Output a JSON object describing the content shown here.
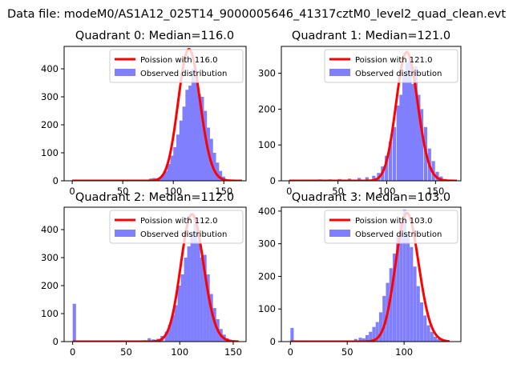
{
  "figure": {
    "suptitle": "Data file: modeM0/AS1A12_025T14_9000005646_41317cztM0_level2_quad_clean.evt",
    "colors": {
      "observed": "#8080ff",
      "poisson": "#ff0000",
      "axes": "#000000",
      "background": "#ffffff"
    }
  },
  "chart_data": [
    {
      "type": "bar+line",
      "title": "Quadrant 0: Median=116.0",
      "median": 116.0,
      "xlim": [
        -8,
        172
      ],
      "ylim": [
        0,
        480
      ],
      "xticks": [
        0,
        50,
        100,
        150
      ],
      "yticks": [
        0,
        100,
        200,
        300,
        400
      ],
      "legend": {
        "placement": "upper-right",
        "entries": [
          "Poission with 116.0",
          "Observed distribution"
        ]
      },
      "observed": {
        "name": "Observed distribution",
        "bin_width": 3.3,
        "bins": [
          [
            70,
            3
          ],
          [
            73,
            4
          ],
          [
            76,
            8
          ],
          [
            79,
            10
          ],
          [
            82,
            8
          ],
          [
            85,
            12
          ],
          [
            88,
            22
          ],
          [
            91,
            35
          ],
          [
            94,
            60
          ],
          [
            97,
            90
          ],
          [
            100,
            120
          ],
          [
            103,
            165
          ],
          [
            106,
            215
          ],
          [
            109,
            265
          ],
          [
            112,
            325
          ],
          [
            115,
            340
          ],
          [
            118,
            400
          ],
          [
            121,
            360
          ],
          [
            124,
            310
          ],
          [
            127,
            300
          ],
          [
            130,
            250
          ],
          [
            133,
            190
          ],
          [
            136,
            150
          ],
          [
            139,
            100
          ],
          [
            142,
            65
          ],
          [
            145,
            35
          ],
          [
            148,
            15
          ],
          [
            151,
            6
          ],
          [
            154,
            3
          ]
        ]
      },
      "poisson": {
        "name": "Poission with 116.0",
        "mu": 116.0,
        "amplitude": 470,
        "x_range": [
          0,
          168
        ]
      }
    },
    {
      "type": "bar+line",
      "title": "Quadrant 1: Median=121.0",
      "median": 121.0,
      "xlim": [
        -8,
        176
      ],
      "ylim": [
        0,
        375
      ],
      "xticks": [
        0,
        50,
        100,
        150
      ],
      "yticks": [
        0,
        100,
        200,
        300
      ],
      "legend": {
        "placement": "upper-right",
        "entries": [
          "Poission with 121.0",
          "Observed distribution"
        ]
      },
      "observed": {
        "name": "Observed distribution",
        "bin_width": 3.5,
        "bins": [
          [
            10,
            2
          ],
          [
            20,
            3
          ],
          [
            30,
            4
          ],
          [
            40,
            4
          ],
          [
            50,
            5
          ],
          [
            60,
            6
          ],
          [
            70,
            8
          ],
          [
            78,
            10
          ],
          [
            85,
            14
          ],
          [
            90,
            22
          ],
          [
            94,
            40
          ],
          [
            98,
            70
          ],
          [
            102,
            110
          ],
          [
            106,
            150
          ],
          [
            110,
            210
          ],
          [
            113,
            240
          ],
          [
            116,
            300
          ],
          [
            119,
            330
          ],
          [
            122,
            340
          ],
          [
            125,
            270
          ],
          [
            128,
            320
          ],
          [
            131,
            240
          ],
          [
            134,
            200
          ],
          [
            138,
            150
          ],
          [
            142,
            90
          ],
          [
            146,
            55
          ],
          [
            150,
            25
          ],
          [
            154,
            12
          ],
          [
            158,
            5
          ]
        ]
      },
      "poisson": {
        "name": "Poission with 121.0",
        "mu": 121.0,
        "amplitude": 359,
        "x_range": [
          0,
          172
        ]
      }
    },
    {
      "type": "bar+line",
      "title": "Quadrant 2: Median=112.0",
      "median": 112.0,
      "xlim": [
        -8,
        162
      ],
      "ylim": [
        0,
        480
      ],
      "xticks": [
        0,
        50,
        100,
        150
      ],
      "yticks": [
        0,
        100,
        200,
        300,
        400
      ],
      "legend": {
        "placement": "upper-right",
        "entries": [
          "Poission with 112.0",
          "Observed distribution"
        ]
      },
      "observed": {
        "name": "Observed distribution",
        "bin_width": 3.1,
        "bins": [
          [
            0,
            135
          ],
          [
            66,
            5
          ],
          [
            70,
            12
          ],
          [
            74,
            8
          ],
          [
            78,
            10
          ],
          [
            82,
            20
          ],
          [
            86,
            35
          ],
          [
            89,
            60
          ],
          [
            92,
            95
          ],
          [
            95,
            130
          ],
          [
            98,
            200
          ],
          [
            101,
            240
          ],
          [
            104,
            300
          ],
          [
            107,
            340
          ],
          [
            110,
            390
          ],
          [
            113,
            420
          ],
          [
            116,
            360
          ],
          [
            119,
            300
          ],
          [
            122,
            310
          ],
          [
            125,
            240
          ],
          [
            128,
            170
          ],
          [
            131,
            120
          ],
          [
            134,
            80
          ],
          [
            137,
            45
          ],
          [
            140,
            25
          ],
          [
            143,
            12
          ],
          [
            146,
            6
          ],
          [
            149,
            3
          ]
        ]
      },
      "poisson": {
        "name": "Poission with 112.0",
        "mu": 112.0,
        "amplitude": 455,
        "x_range": [
          0,
          155
        ]
      }
    },
    {
      "type": "bar+line",
      "title": "Quadrant 3: Median=103.0",
      "median": 103.0,
      "xlim": [
        -8,
        150
      ],
      "ylim": [
        0,
        412
      ],
      "xticks": [
        0,
        50,
        100
      ],
      "yticks": [
        0,
        100,
        200,
        300,
        400
      ],
      "legend": {
        "placement": "upper-right",
        "entries": [
          "Poission with 103.0",
          "Observed distribution"
        ]
      },
      "observed": {
        "name": "Observed distribution",
        "bin_width": 2.9,
        "bins": [
          [
            0,
            42
          ],
          [
            56,
            8
          ],
          [
            60,
            12
          ],
          [
            63,
            10
          ],
          [
            66,
            20
          ],
          [
            69,
            30
          ],
          [
            72,
            45
          ],
          [
            75,
            60
          ],
          [
            78,
            90
          ],
          [
            81,
            140
          ],
          [
            84,
            180
          ],
          [
            87,
            225
          ],
          [
            90,
            270
          ],
          [
            93,
            320
          ],
          [
            96,
            370
          ],
          [
            99,
            405
          ],
          [
            102,
            330
          ],
          [
            105,
            290
          ],
          [
            108,
            230
          ],
          [
            111,
            170
          ],
          [
            114,
            120
          ],
          [
            117,
            80
          ],
          [
            120,
            50
          ],
          [
            123,
            30
          ],
          [
            126,
            15
          ],
          [
            129,
            8
          ],
          [
            132,
            4
          ],
          [
            135,
            2
          ]
        ]
      },
      "poisson": {
        "name": "Poission with 103.0",
        "mu": 103.0,
        "amplitude": 394,
        "x_range": [
          0,
          140
        ]
      }
    }
  ]
}
